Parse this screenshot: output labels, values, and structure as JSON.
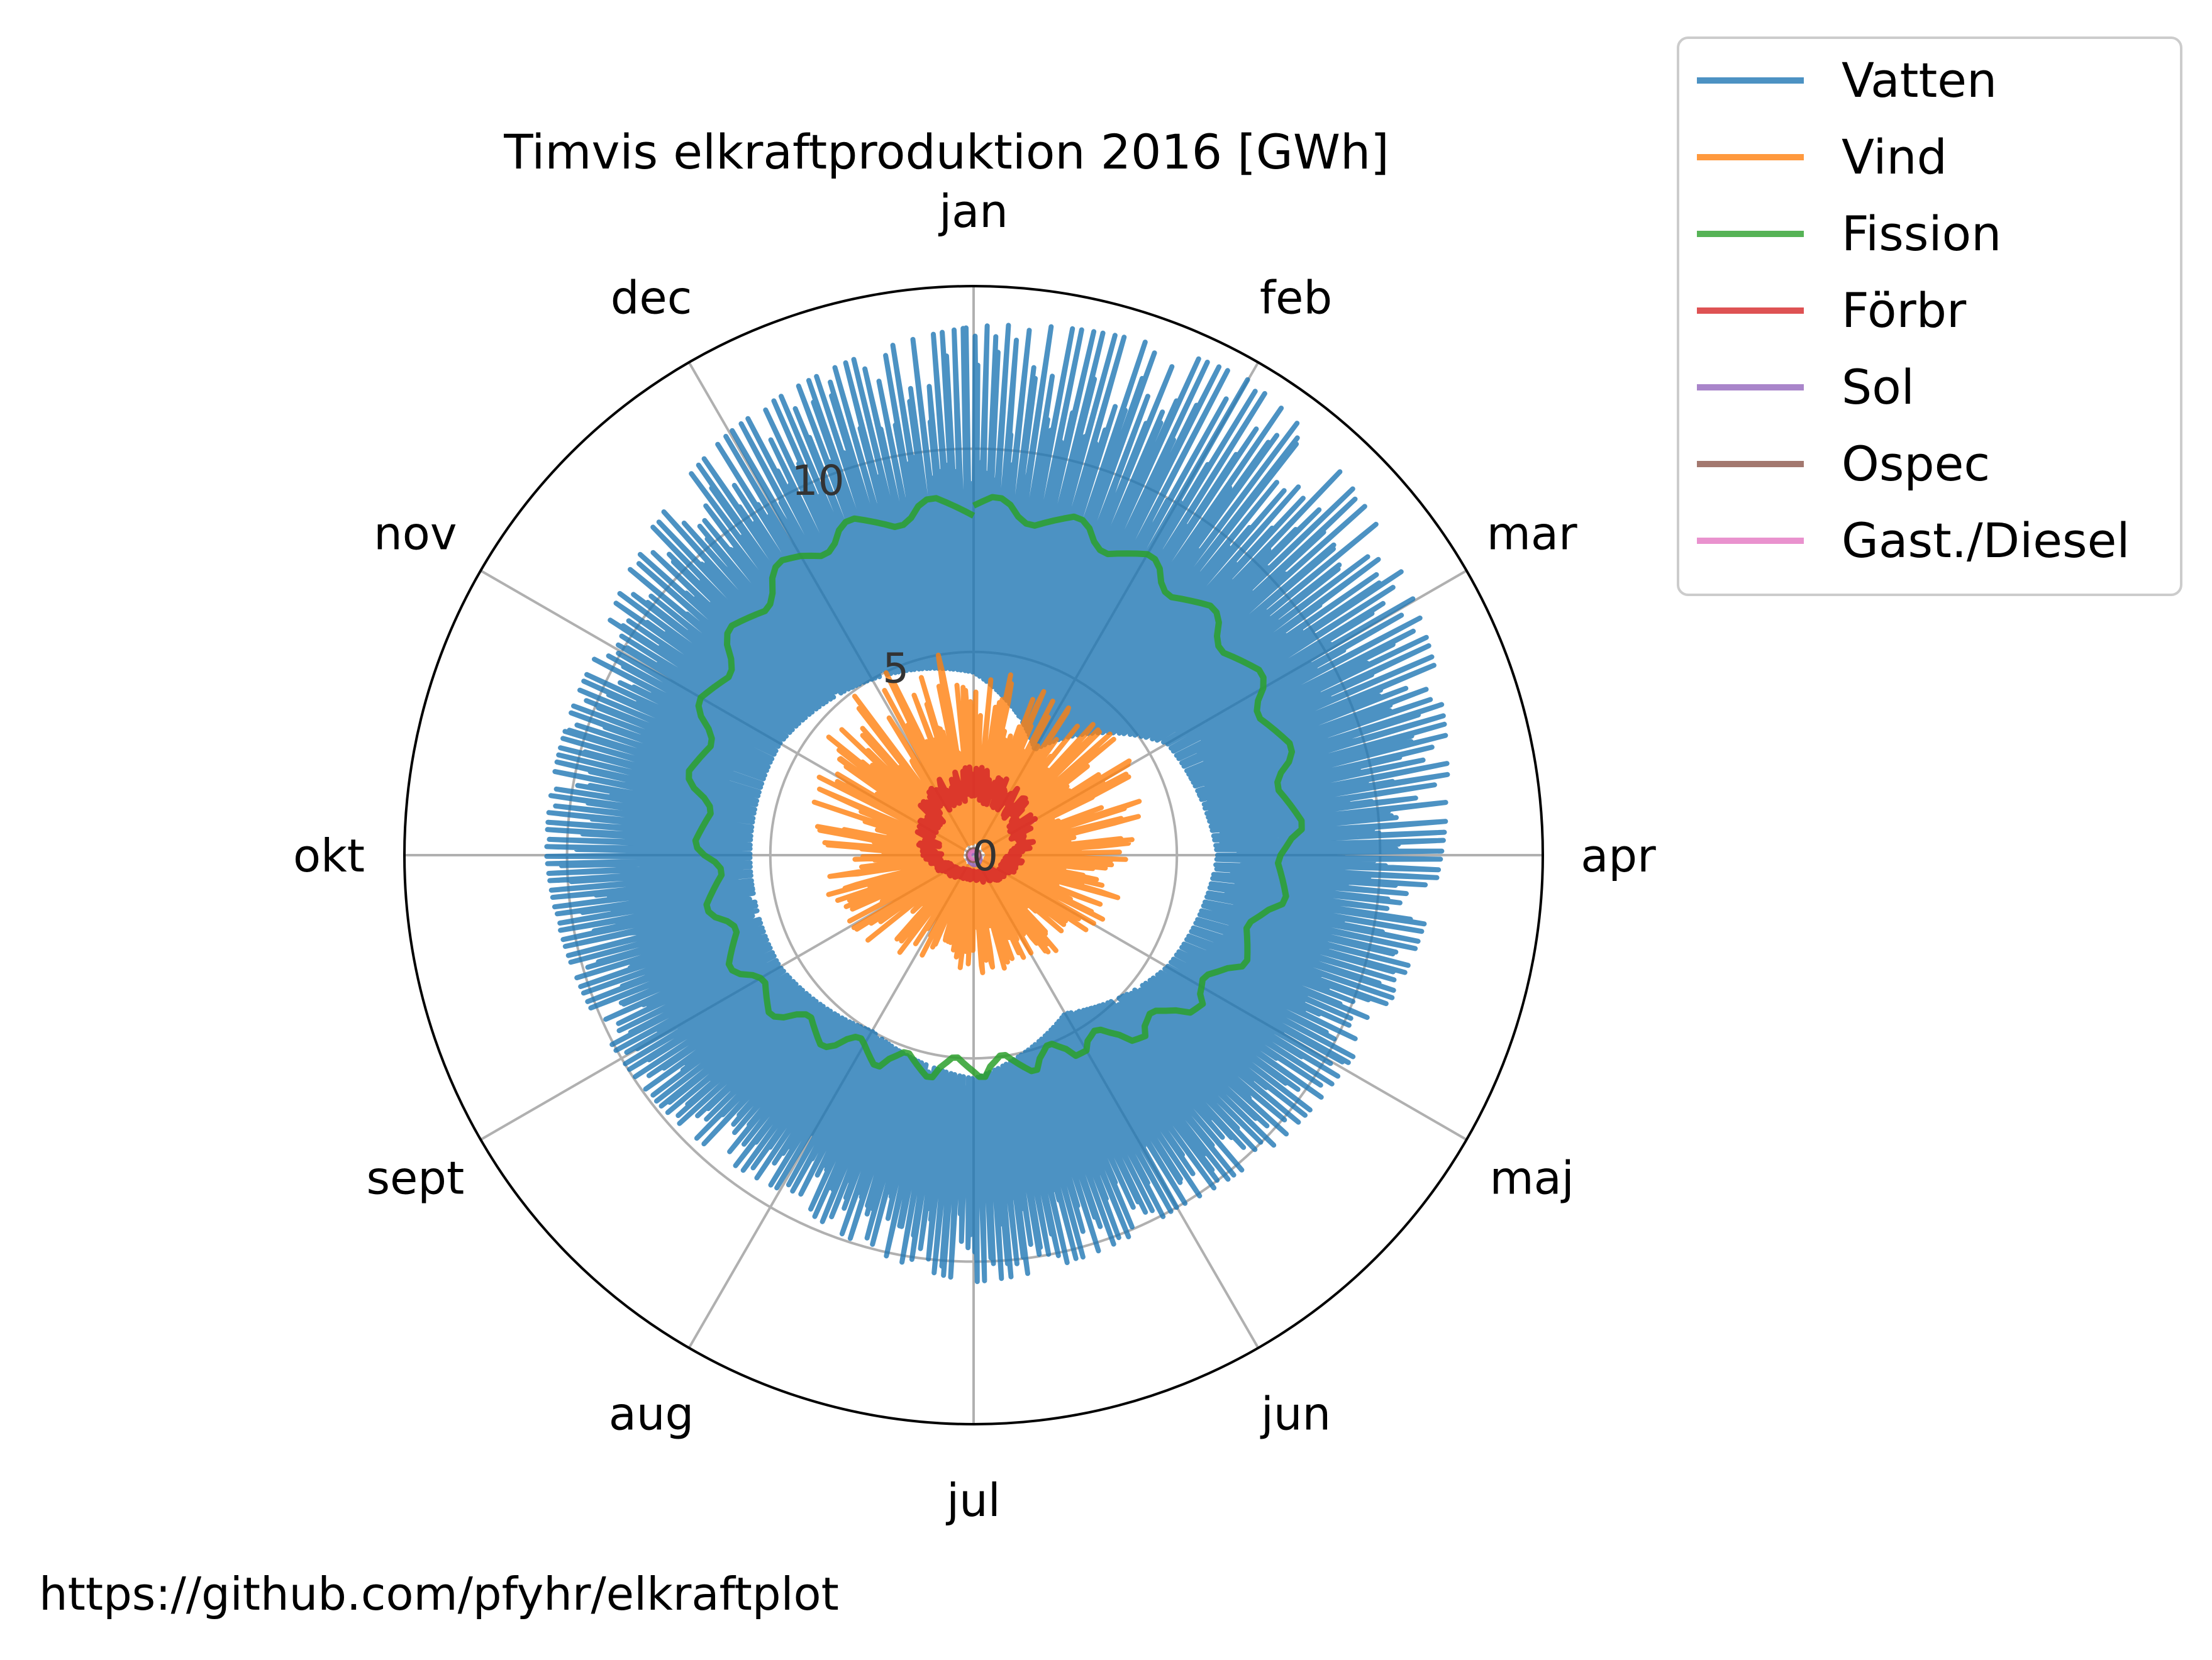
{
  "chart_data": {
    "type": "polar-line",
    "title": "Timvis elkraftproduktion 2016 [GWh]",
    "source": "https://github.com/pfyhr/elkraftplot",
    "months": [
      "jan",
      "feb",
      "mar",
      "apr",
      "maj",
      "jun",
      "jul",
      "aug",
      "sept",
      "okt",
      "nov",
      "dec"
    ],
    "r_ticks": [
      "0",
      "5",
      "10"
    ],
    "r_tick_values": [
      0,
      5,
      10
    ],
    "rlim": [
      0,
      14
    ],
    "grid": true,
    "legend_position": "outside-top-right",
    "series": [
      {
        "name": "Vatten",
        "color": "#1f77b4",
        "monthly_min": [
          4.5,
          3.0,
          5.5,
          6.0,
          5.5,
          4.5,
          5.5,
          5.0,
          5.5,
          5.5,
          5.5,
          5.0
        ],
        "monthly_max": [
          13.0,
          13.5,
          12.5,
          11.5,
          10.5,
          10.0,
          10.5,
          9.5,
          10.0,
          10.5,
          10.5,
          12.0
        ]
      },
      {
        "name": "Vind",
        "color": "#ff7f0e",
        "monthly_min": [
          0.2,
          0.2,
          0.2,
          0.2,
          0.2,
          0.2,
          0.2,
          0.2,
          0.2,
          0.2,
          0.2,
          0.2
        ],
        "monthly_max": [
          5.0,
          4.5,
          4.5,
          4.0,
          3.5,
          3.0,
          3.0,
          3.0,
          3.5,
          4.0,
          4.5,
          5.0
        ]
      },
      {
        "name": "Fission",
        "color": "#2ca02c",
        "monthly": [
          8.6,
          8.3,
          8.1,
          7.8,
          6.6,
          5.3,
          5.2,
          5.5,
          6.3,
          6.5,
          7.5,
          8.5
        ]
      },
      {
        "name": "Förbr",
        "color": "#d62728",
        "monthly": [
          1.8,
          1.6,
          1.4,
          1.1,
          0.8,
          0.6,
          0.5,
          0.5,
          0.7,
          1.0,
          1.3,
          1.6
        ]
      },
      {
        "name": "Sol",
        "color": "#9467bd",
        "monthly": [
          0.0,
          0.0,
          0.05,
          0.1,
          0.15,
          0.2,
          0.2,
          0.15,
          0.1,
          0.05,
          0.0,
          0.0
        ]
      },
      {
        "name": "Ospec",
        "color": "#8c564b",
        "monthly": [
          0.1,
          0.1,
          0.1,
          0.1,
          0.1,
          0.1,
          0.1,
          0.1,
          0.1,
          0.1,
          0.1,
          0.1
        ]
      },
      {
        "name": "Gast./Diesel",
        "color": "#e377c2",
        "monthly": [
          0.05,
          0.05,
          0.05,
          0.05,
          0.05,
          0.05,
          0.05,
          0.05,
          0.05,
          0.05,
          0.05,
          0.05
        ]
      }
    ]
  }
}
